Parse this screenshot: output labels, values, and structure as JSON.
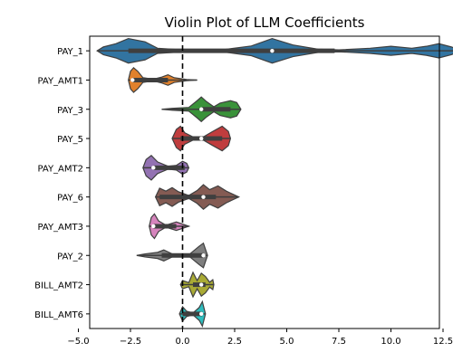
{
  "chart_data": {
    "type": "violin",
    "title": "Violin Plot of LLM Coefficients",
    "xlabel": "",
    "ylabel": "",
    "xlim": [
      -5.2,
      14.2
    ],
    "xticks": [
      "−5.0",
      "−2.5",
      "0.0",
      "2.5",
      "5.0",
      "7.5",
      "10.0",
      "12.5"
    ],
    "xtick_values": [
      -5.0,
      -2.5,
      0.0,
      2.5,
      5.0,
      7.5,
      10.0,
      12.5
    ],
    "reference_line": {
      "x": 0,
      "style": "dashed",
      "color": "#000000"
    },
    "grid": false,
    "categories": [
      "PAY_1",
      "PAY_AMT1",
      "PAY_3",
      "PAY_5",
      "PAY_AMT2",
      "PAY_6",
      "PAY_AMT3",
      "PAY_2",
      "BILL_AMT2",
      "BILL_AMT6"
    ],
    "series": [
      {
        "category": "PAY_1",
        "color": "#3274a1",
        "min": -4.1,
        "q1": -2.6,
        "median": 4.3,
        "q3": 7.3,
        "max": 13.4,
        "density": [
          [
            -4.1,
            0.0
          ],
          [
            -3.8,
            0.12
          ],
          [
            -3.2,
            0.22
          ],
          [
            -2.6,
            0.38
          ],
          [
            -1.8,
            0.28
          ],
          [
            -1.2,
            0.08
          ],
          [
            0.0,
            0.03
          ],
          [
            2.0,
            0.04
          ],
          [
            3.3,
            0.15
          ],
          [
            4.3,
            0.38
          ],
          [
            5.3,
            0.18
          ],
          [
            6.5,
            0.05
          ],
          [
            7.5,
            0.03
          ],
          [
            9.0,
            0.08
          ],
          [
            10.0,
            0.14
          ],
          [
            11.0,
            0.08
          ],
          [
            11.7,
            0.14
          ],
          [
            12.3,
            0.22
          ],
          [
            12.9,
            0.12
          ],
          [
            13.4,
            0.0
          ]
        ]
      },
      {
        "category": "PAY_AMT1",
        "color": "#e1812c",
        "min": -2.6,
        "q1": -2.4,
        "median": -2.4,
        "q3": -0.7,
        "max": 0.7,
        "density": [
          [
            -2.6,
            0.0
          ],
          [
            -2.5,
            0.3
          ],
          [
            -2.35,
            0.42
          ],
          [
            -2.15,
            0.3
          ],
          [
            -1.9,
            0.08
          ],
          [
            -1.4,
            0.03
          ],
          [
            -1.0,
            0.1
          ],
          [
            -0.7,
            0.18
          ],
          [
            -0.4,
            0.08
          ],
          [
            0.2,
            0.02
          ],
          [
            0.7,
            0.0
          ]
        ]
      },
      {
        "category": "PAY_3",
        "color": "#3a923a",
        "min": -1.0,
        "q1": 0.9,
        "median": 0.9,
        "q3": 2.3,
        "max": 2.8,
        "density": [
          [
            -1.0,
            0.0
          ],
          [
            -0.5,
            0.03
          ],
          [
            0.3,
            0.06
          ],
          [
            0.7,
            0.28
          ],
          [
            0.9,
            0.4
          ],
          [
            1.15,
            0.25
          ],
          [
            1.5,
            0.08
          ],
          [
            1.8,
            0.2
          ],
          [
            2.3,
            0.28
          ],
          [
            2.6,
            0.22
          ],
          [
            2.8,
            0.0
          ]
        ]
      },
      {
        "category": "PAY_5",
        "color": "#c03d3e",
        "min": -0.5,
        "q1": -0.1,
        "median": 0.9,
        "q3": 1.9,
        "max": 2.3,
        "density": [
          [
            -0.5,
            0.0
          ],
          [
            -0.3,
            0.28
          ],
          [
            -0.1,
            0.38
          ],
          [
            0.1,
            0.18
          ],
          [
            0.5,
            0.05
          ],
          [
            1.0,
            0.05
          ],
          [
            1.4,
            0.2
          ],
          [
            1.9,
            0.38
          ],
          [
            2.2,
            0.22
          ],
          [
            2.3,
            0.0
          ]
        ]
      },
      {
        "category": "PAY_AMT2",
        "color": "#9372b2",
        "min": -1.9,
        "q1": -1.4,
        "median": -1.4,
        "q3": 0.1,
        "max": 0.3,
        "density": [
          [
            -1.9,
            0.0
          ],
          [
            -1.75,
            0.28
          ],
          [
            -1.5,
            0.42
          ],
          [
            -1.2,
            0.2
          ],
          [
            -0.7,
            0.05
          ],
          [
            -0.3,
            0.08
          ],
          [
            0.0,
            0.22
          ],
          [
            0.2,
            0.15
          ],
          [
            0.3,
            0.0
          ]
        ]
      },
      {
        "category": "PAY_6",
        "color": "#845b53",
        "min": -1.3,
        "q1": -1.1,
        "median": 1.0,
        "q3": 1.6,
        "max": 2.7,
        "density": [
          [
            -1.3,
            0.0
          ],
          [
            -1.1,
            0.3
          ],
          [
            -0.8,
            0.2
          ],
          [
            -0.5,
            0.32
          ],
          [
            -0.2,
            0.18
          ],
          [
            0.3,
            0.05
          ],
          [
            0.7,
            0.22
          ],
          [
            1.0,
            0.42
          ],
          [
            1.3,
            0.25
          ],
          [
            1.7,
            0.38
          ],
          [
            2.1,
            0.2
          ],
          [
            2.7,
            0.0
          ]
        ]
      },
      {
        "category": "PAY_AMT3",
        "color": "#d684bd",
        "min": -1.6,
        "q1": -1.4,
        "median": -1.4,
        "q3": -0.3,
        "max": 0.3,
        "density": [
          [
            -1.6,
            0.0
          ],
          [
            -1.5,
            0.25
          ],
          [
            -1.35,
            0.35
          ],
          [
            -1.15,
            0.15
          ],
          [
            -0.8,
            0.03
          ],
          [
            -0.3,
            0.12
          ],
          [
            0.0,
            0.06
          ],
          [
            0.3,
            0.0
          ]
        ]
      },
      {
        "category": "PAY_2",
        "color": "#7f7f7f",
        "min": -2.2,
        "q1": -1.0,
        "median": 1.0,
        "q3": 1.0,
        "max": 1.2,
        "density": [
          [
            -2.2,
            0.0
          ],
          [
            -1.8,
            0.05
          ],
          [
            -1.2,
            0.1
          ],
          [
            -0.9,
            0.18
          ],
          [
            -0.5,
            0.05
          ],
          [
            0.3,
            0.02
          ],
          [
            0.8,
            0.3
          ],
          [
            1.0,
            0.4
          ],
          [
            1.2,
            0.0
          ]
        ]
      },
      {
        "category": "BILL_AMT2",
        "color": "#a9aa35",
        "min": -0.1,
        "q1": 0.5,
        "median": 0.9,
        "q3": 1.1,
        "max": 1.5,
        "density": [
          [
            -0.1,
            0.0
          ],
          [
            0.0,
            0.1
          ],
          [
            0.3,
            0.05
          ],
          [
            0.5,
            0.3
          ],
          [
            0.7,
            0.1
          ],
          [
            0.9,
            0.28
          ],
          [
            1.1,
            0.2
          ],
          [
            1.3,
            0.06
          ],
          [
            1.45,
            0.12
          ],
          [
            1.5,
            0.0
          ]
        ]
      },
      {
        "category": "BILL_AMT6",
        "color": "#2ebdbe",
        "min": -0.15,
        "q1": 0.0,
        "median": 0.9,
        "q3": 0.95,
        "max": 1.1,
        "density": [
          [
            -0.15,
            0.0
          ],
          [
            0.0,
            0.22
          ],
          [
            0.2,
            0.08
          ],
          [
            0.5,
            0.03
          ],
          [
            0.8,
            0.2
          ],
          [
            0.95,
            0.38
          ],
          [
            1.1,
            0.0
          ]
        ]
      }
    ]
  }
}
